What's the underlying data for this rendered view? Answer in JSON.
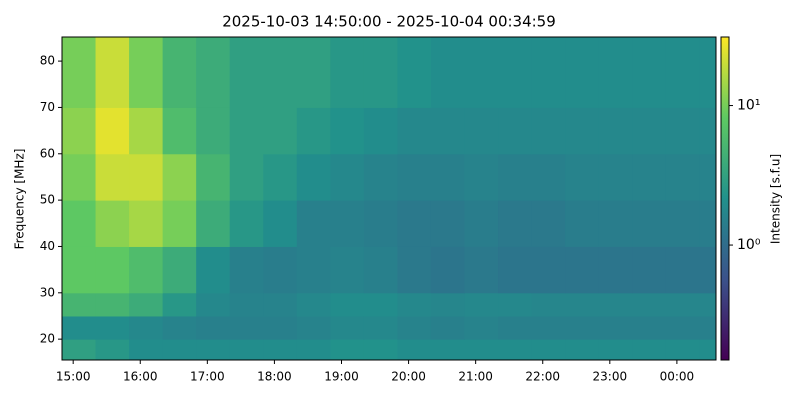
{
  "chart_data": {
    "type": "heatmap",
    "title": "2025-10-03 14:50:00 - 2025-10-04 00:34:59",
    "ylabel": "Frequency [MHz]",
    "colorbar_label": "Intensity [s.f.u]",
    "colormap": "viridis",
    "xlim": [
      "2025-10-03 14:50:00",
      "2025-10-04 00:34:59"
    ],
    "xticks": [
      {
        "value": "2025-10-03 15:00",
        "label": "15:00"
      },
      {
        "value": "2025-10-03 16:00",
        "label": "16:00"
      },
      {
        "value": "2025-10-03 17:00",
        "label": "17:00"
      },
      {
        "value": "2025-10-03 18:00",
        "label": "18:00"
      },
      {
        "value": "2025-10-03 19:00",
        "label": "19:00"
      },
      {
        "value": "2025-10-03 20:00",
        "label": "20:00"
      },
      {
        "value": "2025-10-03 21:00",
        "label": "21:00"
      },
      {
        "value": "2025-10-03 22:00",
        "label": "22:00"
      },
      {
        "value": "2025-10-03 23:00",
        "label": "23:00"
      },
      {
        "value": "2025-10-04 00:00",
        "label": "00:00"
      }
    ],
    "ylim": [
      15.5,
      85.2
    ],
    "yticks": [
      20,
      30,
      40,
      50,
      60,
      70,
      80
    ],
    "clim": [
      0.15,
      31
    ],
    "clog": true,
    "cticks": [
      {
        "value": 1,
        "label": "10⁰"
      },
      {
        "value": 10,
        "label": "10¹"
      }
    ],
    "x_edges": [
      "2025-10-03 14:50",
      "2025-10-03 15:20",
      "2025-10-03 15:50",
      "2025-10-03 16:20",
      "2025-10-03 16:50",
      "2025-10-03 17:20",
      "2025-10-03 17:50",
      "2025-10-03 18:20",
      "2025-10-03 18:50",
      "2025-10-03 19:20",
      "2025-10-03 19:50",
      "2025-10-03 20:20",
      "2025-10-03 20:50",
      "2025-10-03 21:20",
      "2025-10-03 21:50",
      "2025-10-03 22:20",
      "2025-10-03 22:50",
      "2025-10-03 23:20",
      "2025-10-03 23:50",
      "2025-10-04 00:20",
      "2025-10-04 00:35"
    ],
    "y_edges": [
      15.5,
      20,
      25,
      30,
      40,
      50,
      60,
      70,
      85.2
    ],
    "z": [
      [
        3,
        2.5,
        2,
        2,
        2,
        2,
        2,
        2,
        2.2,
        2.2,
        2,
        2,
        2,
        2,
        2,
        2,
        2,
        2,
        2,
        2
      ],
      [
        2,
        2,
        1.8,
        1.6,
        1.5,
        1.5,
        1.5,
        1.6,
        1.8,
        1.8,
        1.6,
        1.5,
        1.6,
        1.5,
        1.5,
        1.5,
        1.5,
        1.5,
        1.5,
        1.5
      ],
      [
        5,
        5,
        4,
        2.5,
        1.8,
        1.6,
        1.6,
        1.8,
        2,
        2,
        1.8,
        1.7,
        1.8,
        1.8,
        1.7,
        1.7,
        1.7,
        1.7,
        1.7,
        1.7
      ],
      [
        8,
        8,
        6,
        4,
        2,
        1.5,
        1.4,
        1.5,
        1.6,
        1.5,
        1.3,
        1.2,
        1.3,
        1.2,
        1.2,
        1.2,
        1.2,
        1.2,
        1.2,
        1.2
      ],
      [
        8,
        12,
        15,
        10,
        4,
        2.5,
        2,
        1.5,
        1.5,
        1.4,
        1.3,
        1.3,
        1.4,
        1.3,
        1.3,
        1.4,
        1.4,
        1.4,
        1.4,
        1.4
      ],
      [
        10,
        20,
        20,
        12,
        5,
        3,
        2.5,
        2,
        1.8,
        1.6,
        1.5,
        1.5,
        1.6,
        1.5,
        1.5,
        1.6,
        1.6,
        1.6,
        1.6,
        1.6
      ],
      [
        12,
        25,
        15,
        6,
        4,
        3,
        3,
        2.5,
        2.2,
        2,
        1.8,
        1.8,
        1.8,
        1.8,
        1.8,
        1.8,
        1.8,
        1.8,
        1.8,
        1.8
      ],
      [
        10,
        20,
        10,
        5,
        4,
        3,
        3,
        3,
        2.5,
        2.5,
        2.2,
        2,
        2,
        2,
        2,
        2,
        2,
        2,
        2,
        2
      ]
    ]
  }
}
